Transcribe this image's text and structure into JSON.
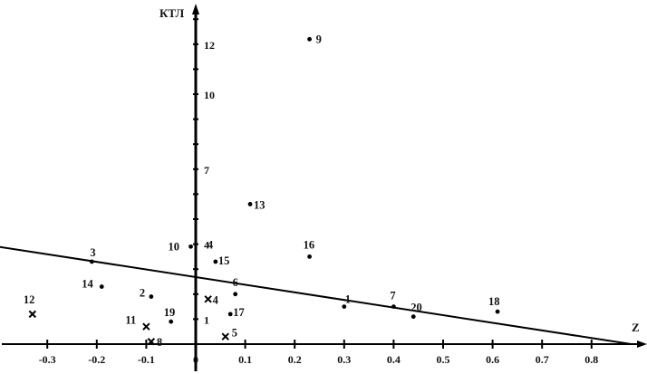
{
  "chart_data": {
    "type": "scatter",
    "title": "",
    "xlabel": "Z",
    "ylabel": "КТЛ",
    "xlim": [
      -0.35,
      0.88
    ],
    "ylim": [
      -0.6,
      13.4
    ],
    "grid": false,
    "legend": "none",
    "x_ticks": [
      -0.3,
      -0.2,
      -0.1,
      0,
      0.1,
      0.2,
      0.3,
      0.4,
      0.5,
      0.6,
      0.7,
      0.8
    ],
    "x_tick_labels": [
      "-0.3",
      "-0.2",
      "-0.1",
      "0",
      "0.1",
      "0.2",
      "0.3",
      "0.4",
      "0.5",
      "0.6",
      "0.7",
      "0.8"
    ],
    "y_ticks": [
      1,
      4,
      7,
      10,
      12
    ],
    "y_tick_labels": [
      "1",
      "4",
      "7",
      "10",
      "12"
    ],
    "series": [
      {
        "marker": "dot",
        "points": [
          {
            "label": "1",
            "x": 0.3,
            "y": 1.5
          },
          {
            "label": "2",
            "x": -0.09,
            "y": 1.9
          },
          {
            "label": "3",
            "x": -0.21,
            "y": 3.3
          },
          {
            "label": "6",
            "x": 0.08,
            "y": 2.0
          },
          {
            "label": "7",
            "x": 0.4,
            "y": 1.5
          },
          {
            "label": "9",
            "x": 0.23,
            "y": 12.2
          },
          {
            "label": "10",
            "x": -0.01,
            "y": 3.9
          },
          {
            "label": "13",
            "x": 0.11,
            "y": 5.6
          },
          {
            "label": "14",
            "x": -0.19,
            "y": 2.3
          },
          {
            "label": "15",
            "x": 0.04,
            "y": 3.3
          },
          {
            "label": "16",
            "x": 0.23,
            "y": 3.5
          },
          {
            "label": "17",
            "x": 0.07,
            "y": 1.2
          },
          {
            "label": "18",
            "x": 0.61,
            "y": 1.3
          },
          {
            "label": "19",
            "x": -0.05,
            "y": 0.9
          },
          {
            "label": "20",
            "x": 0.44,
            "y": 1.1
          }
        ]
      },
      {
        "marker": "cross",
        "points": [
          {
            "label": "4",
            "x": 0.025,
            "y": 1.8
          },
          {
            "label": "5",
            "x": 0.06,
            "y": 0.3
          },
          {
            "label": "8",
            "x": -0.09,
            "y": 0.1
          },
          {
            "label": "11",
            "x": -0.1,
            "y": 0.7
          },
          {
            "label": "12",
            "x": -0.33,
            "y": 1.2
          }
        ]
      }
    ],
    "annotations": [
      {
        "text": "4",
        "x": 0.02,
        "y": 4.0
      }
    ],
    "regression_line": {
      "x": [
        -0.4,
        0.88
      ],
      "y": [
        3.9,
        0.0
      ]
    }
  }
}
